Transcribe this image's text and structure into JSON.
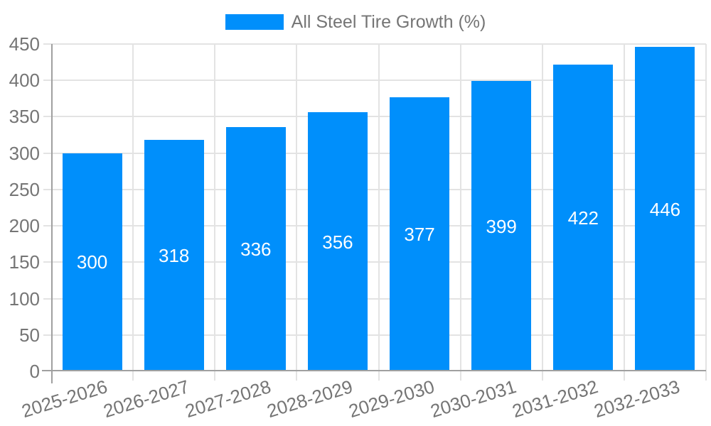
{
  "chart_data": {
    "type": "bar",
    "title": "",
    "xlabel": "",
    "ylabel": "",
    "legend": {
      "position": "top",
      "label": "All Steel Tire Growth (%)"
    },
    "categories": [
      "2025-2026",
      "2026-2027",
      "2027-2028",
      "2028-2029",
      "2029-2030",
      "2030-2031",
      "2031-2032",
      "2032-2033"
    ],
    "series": [
      {
        "name": "All Steel Tire Growth (%)",
        "values": [
          300,
          318,
          336,
          356,
          377,
          399,
          422,
          446
        ]
      }
    ],
    "value_labels_shown": true,
    "ylim": [
      0,
      450
    ],
    "ytick_step": 50,
    "yticks": [
      0,
      50,
      100,
      150,
      200,
      250,
      300,
      350,
      400,
      450
    ],
    "grid": true,
    "x_label_rotation_deg": -17,
    "colors": {
      "bar": "#008FFB",
      "value_label": "#FFFFFF",
      "axis_text": "#757575",
      "axis_line": "#A0A0A0",
      "gridline": "#E3E3E3",
      "background": "#FFFFFF"
    }
  }
}
